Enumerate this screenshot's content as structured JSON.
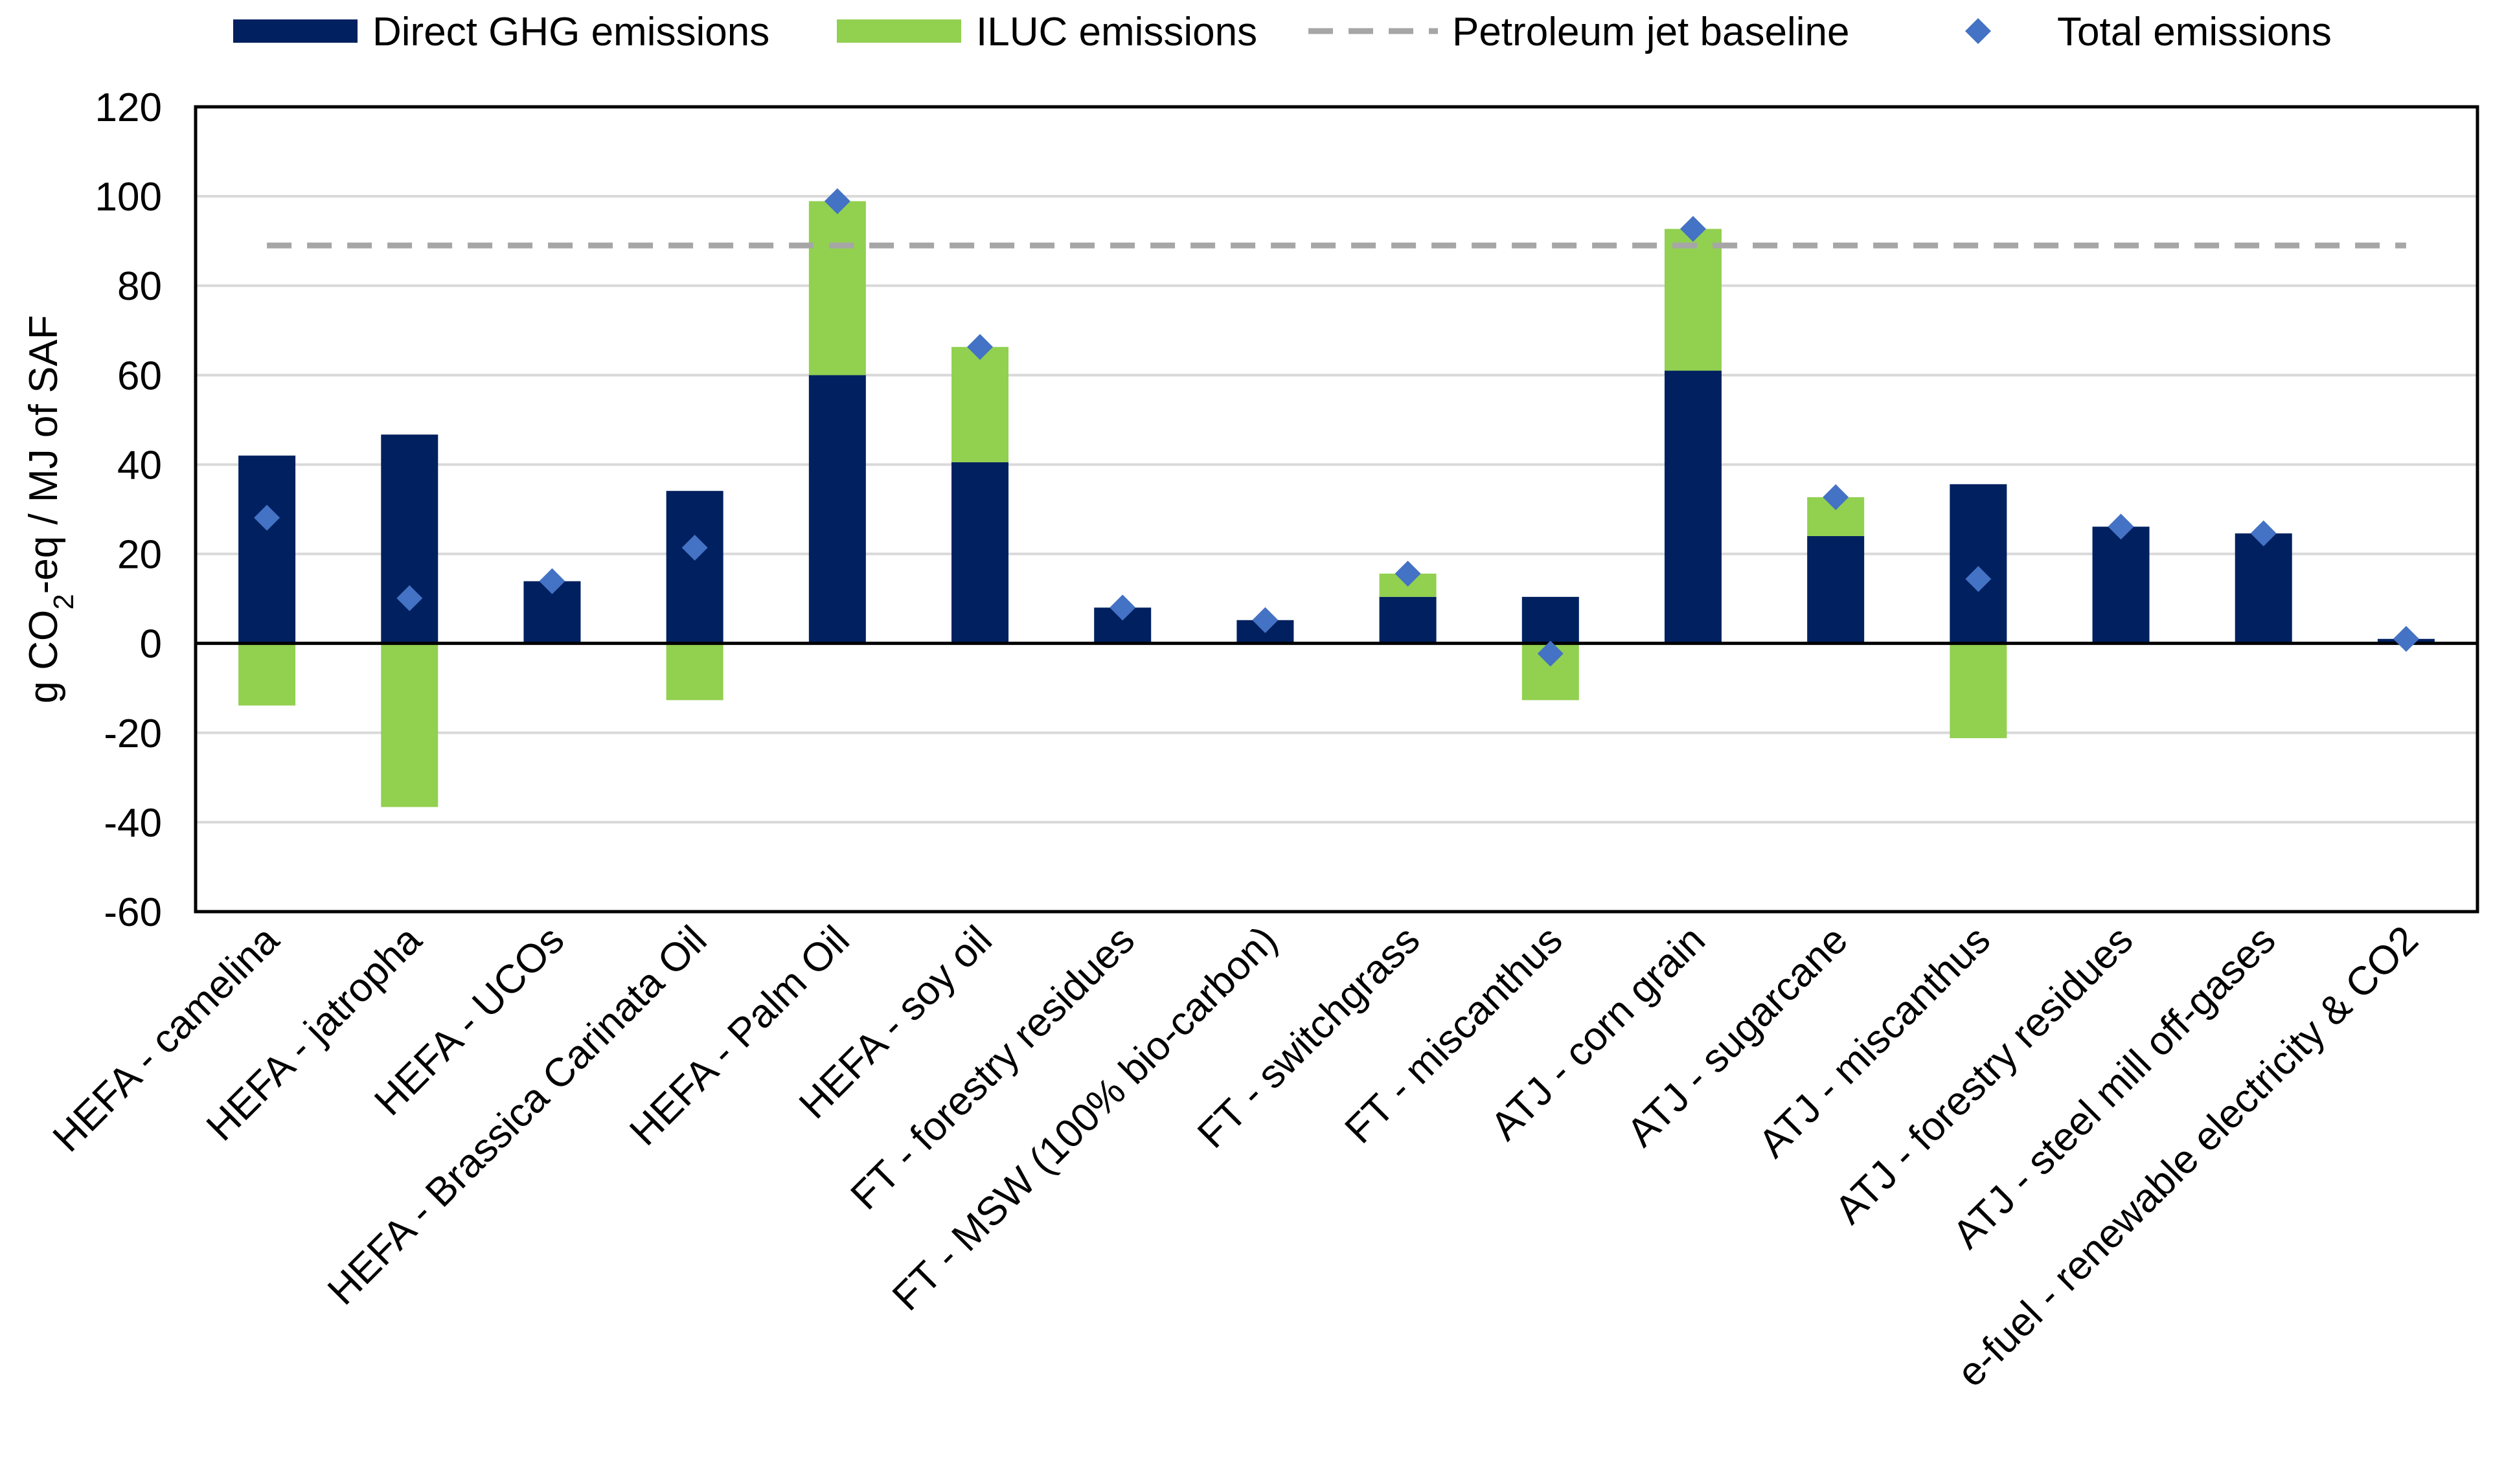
{
  "chart_data": {
    "type": "bar",
    "stacked": true,
    "ylabel": {
      "prefix": "g CO",
      "subscript": "2",
      "suffix": "-eq / MJ of SAF"
    },
    "ylim": [
      -60,
      120
    ],
    "yticks": [
      120,
      100,
      80,
      60,
      40,
      20,
      0,
      -20,
      -40,
      -60
    ],
    "grid": true,
    "legend_position": "top",
    "categories": [
      "HEFA - camelina",
      "HEFA - jatropha",
      "HEFA - UCOs",
      "HEFA - Brassica Carinata Oil",
      "HEFA - Palm Oil",
      "HEFA - soy oil",
      "FT - forestry residues",
      "FT - MSW (100% bio-carbon)",
      "FT - switchgrass",
      "FT - miscanthus",
      "ATJ - corn grain",
      "ATJ - sugarcane",
      "ATJ - miscanthus",
      "ATJ - forestry residues",
      "ATJ - steel mill off-gases",
      "e-fuel - renewable electricity & CO2"
    ],
    "series": [
      {
        "name": "Direct GHG emissions",
        "kind": "bar",
        "color": "#002060",
        "values": [
          42,
          46.7,
          13.9,
          34.1,
          60,
          40.5,
          8,
          5.2,
          10.4,
          10.4,
          61,
          24,
          35.6,
          26.1,
          24.6,
          1
        ]
      },
      {
        "name": "ILUC emissions",
        "kind": "bar",
        "color": "#92D050",
        "values": [
          -13.9,
          -36.6,
          0,
          -12.7,
          38.9,
          25.8,
          0,
          0,
          5.2,
          -12.7,
          31.7,
          8.7,
          -21.2,
          0,
          0,
          0
        ]
      },
      {
        "name": "Petroleum jet baseline",
        "kind": "dashed-line",
        "color": "#A6A6A6",
        "value": 89
      },
      {
        "name": "Total emissions",
        "kind": "marker",
        "color": "#4472C4",
        "values": [
          28.1,
          10.1,
          13.9,
          21.4,
          98.9,
          66.3,
          8,
          5.2,
          15.6,
          -2.3,
          92.7,
          32.7,
          14.4,
          26.1,
          24.6,
          1
        ]
      }
    ]
  }
}
